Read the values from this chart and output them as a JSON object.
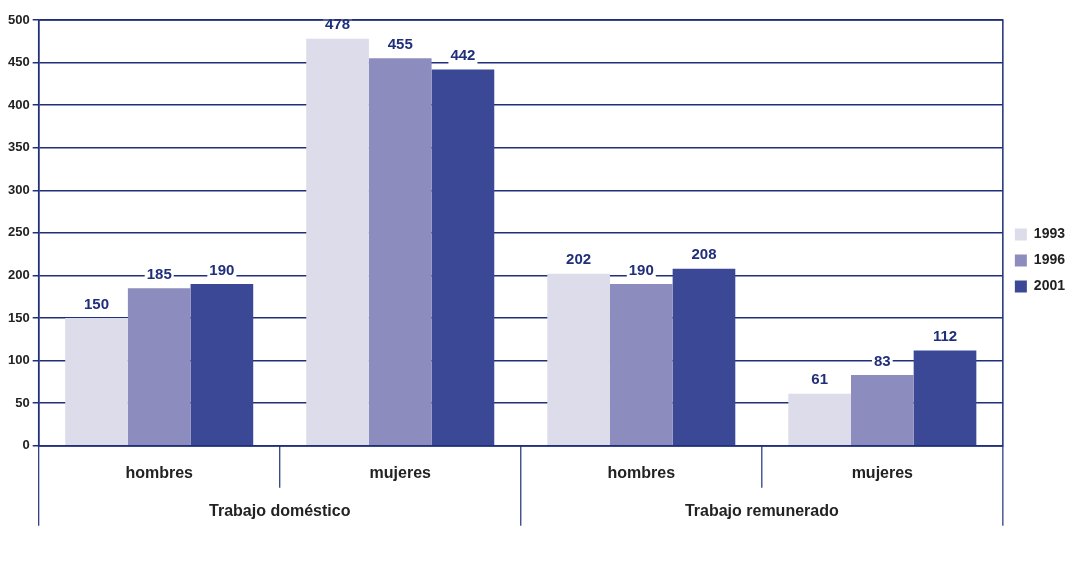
{
  "chart_data": {
    "type": "bar",
    "categories": [
      "hombres",
      "mujeres",
      "hombres",
      "mujeres"
    ],
    "series": [
      {
        "name": "1993",
        "color": "#dcdcea",
        "values": [
          150,
          478,
          202,
          61
        ]
      },
      {
        "name": "1996",
        "color": "#8c8cbf",
        "values": [
          185,
          455,
          190,
          83
        ]
      },
      {
        "name": "2001",
        "color": "#3a4896",
        "values": [
          190,
          442,
          208,
          112
        ]
      }
    ],
    "ylim": [
      0,
      500
    ],
    "yticks": [
      0,
      50,
      100,
      150,
      200,
      250,
      300,
      350,
      400,
      450,
      500
    ],
    "grid": "y",
    "legend": "right",
    "data_labels": true,
    "annotations": [
      "Trabajo doméstico",
      "Trabajo remunerado"
    ]
  }
}
